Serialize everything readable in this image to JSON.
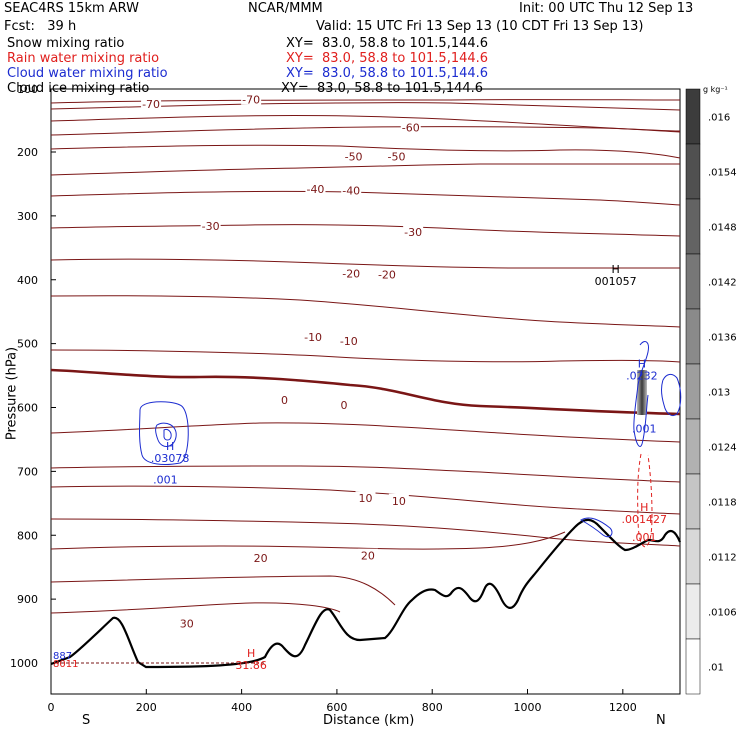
{
  "header": {
    "model": "SEAC4RS 15km ARW",
    "center": "NCAR/MMM",
    "init": "Init: 00 UTC Thu 12 Sep 13",
    "fcst": "Fcst:   39 h",
    "valid": "Valid: 15 UTC Fri 13 Sep 13 (10 CDT Fri 13 Sep 13)",
    "fields": [
      {
        "label": "Snow mixing ratio",
        "xy": "XY=  83.0, 58.8 to 101.5,144.6",
        "color": "#000000"
      },
      {
        "label": "Rain water mixing ratio",
        "xy": "XY=  83.0, 58.8 to 101.5,144.6",
        "color": "#e0201e"
      },
      {
        "label": "Cloud water mixing ratio",
        "xy": "XY=  83.0, 58.8 to 101.5,144.6",
        "color": "#1c2cd0"
      },
      {
        "label": "Cloud ice mixing ratio",
        "xy": "XY=  83.0, 58.8 to 101.5,144.6",
        "color": "#000000"
      }
    ]
  },
  "colorbar": {
    "unit": "g kg⁻¹",
    "levels": [
      ".016",
      ".0154",
      ".0148",
      ".0142",
      ".0136",
      ".013",
      ".0124",
      ".0118",
      ".0112",
      ".0106",
      ".01"
    ]
  },
  "chart_data": {
    "type": "cross-section",
    "xlabel": "Distance (km)",
    "ylabel": "Pressure (hPa)",
    "x_ticks": [
      0,
      200,
      400,
      600,
      800,
      1000,
      1200
    ],
    "y_ticks": [
      200,
      300,
      400,
      500,
      600,
      700,
      800,
      900,
      1000
    ],
    "xlim": [
      0,
      1320
    ],
    "end_labels": {
      "left": "S",
      "right": "N"
    },
    "temperature_contour_labels": [
      {
        "text": "-70",
        "x": 210,
        "p": 125
      },
      {
        "text": "-70",
        "x": 420,
        "p": 118
      },
      {
        "text": "-60",
        "x": 755,
        "p": 162
      },
      {
        "text": "-50",
        "x": 635,
        "p": 207
      },
      {
        "text": "-50",
        "x": 725,
        "p": 207
      },
      {
        "text": "-40",
        "x": 555,
        "p": 258
      },
      {
        "text": "-40",
        "x": 630,
        "p": 260
      },
      {
        "text": "-30",
        "x": 335,
        "p": 316
      },
      {
        "text": "-30",
        "x": 760,
        "p": 325
      },
      {
        "text": "-20",
        "x": 630,
        "p": 390
      },
      {
        "text": "-20",
        "x": 705,
        "p": 392
      },
      {
        "text": "-10",
        "x": 550,
        "p": 490
      },
      {
        "text": "-10",
        "x": 625,
        "p": 496
      },
      {
        "text": "0",
        "x": 490,
        "p": 588
      },
      {
        "text": "0",
        "x": 615,
        "p": 596
      },
      {
        "text": "10",
        "x": 660,
        "p": 742
      },
      {
        "text": "10",
        "x": 730,
        "p": 746
      },
      {
        "text": "20",
        "x": 440,
        "p": 836
      },
      {
        "text": "20",
        "x": 665,
        "p": 832
      },
      {
        "text": "30",
        "x": 285,
        "p": 938
      }
    ],
    "extrema_labels": [
      {
        "type": "H",
        "value": "001057",
        "x": 1185,
        "p": 405,
        "color": "#000000"
      },
      {
        "type": "H",
        "value": ".0232",
        "x": 1240,
        "p": 553,
        "color": "#1c2cd0"
      },
      {
        "type": "H",
        "value": ".001427",
        "x": 1245,
        "p": 778,
        "color": "#e0201e"
      },
      {
        "type": "H",
        "value": ".03078",
        "x": 250,
        "p": 682,
        "color": "#1c2cd0"
      },
      {
        "type": "H",
        "value": "31.86",
        "x": 420,
        "p": 1006,
        "color": "#e0201e"
      }
    ],
    "cloud_water_labels": [
      {
        "value": ".001",
        "x": 240,
        "p": 713
      },
      {
        "value": ".001",
        "x": 1245,
        "p": 633
      }
    ],
    "rain_labels": [
      {
        "value": ".001",
        "x": 1245,
        "p": 803
      }
    ],
    "corner_labels": [
      "887",
      "8011"
    ]
  }
}
